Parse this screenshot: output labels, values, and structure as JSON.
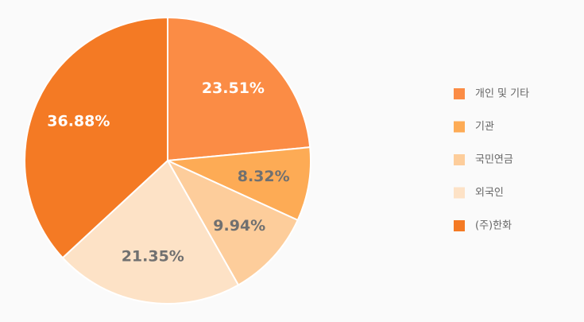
{
  "chart_data": {
    "type": "pie",
    "categories": [
      "개인 및 기타",
      "기관",
      "국민연금",
      "외국인",
      "(주)한화"
    ],
    "values": [
      23.51,
      8.32,
      9.94,
      21.35,
      36.88
    ],
    "value_labels": [
      "23.51%",
      "8.32%",
      "9.94%",
      "21.35%",
      "36.88%"
    ],
    "colors": [
      "#fb8c45",
      "#fdab55",
      "#fdcd9b",
      "#fde2c6",
      "#f47a24"
    ],
    "legend": "right"
  }
}
